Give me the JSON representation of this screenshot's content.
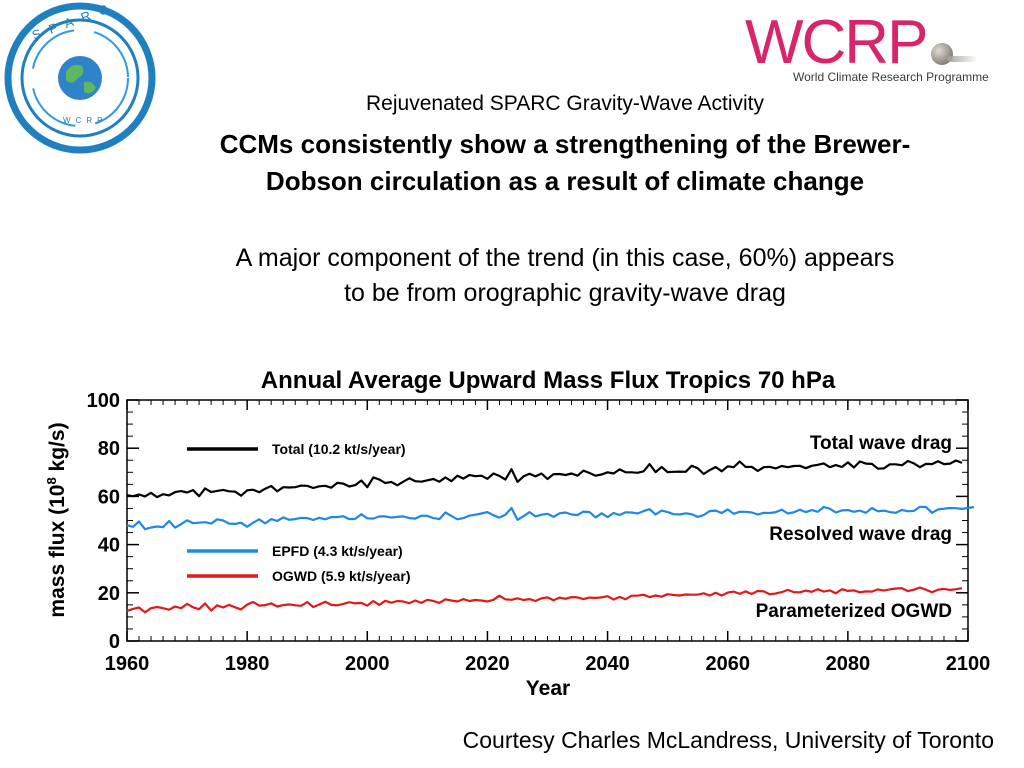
{
  "header": {
    "line1": "Rejuvenated SPARC Gravity-Wave Activity",
    "bold_line1": "CCMs consistently show a strengthening of the Brewer-",
    "bold_line2": "Dobson circulation as a result of climate change",
    "para_line1": "A major component of the trend (in this case, 60%) appears",
    "para_line2": "to be from orographic gravity-wave drag"
  },
  "logos": {
    "sparc_text": "SPARC",
    "sparc_sub": "WCRP",
    "wcrp_word": "WCRP",
    "wcrp_subtitle": "World Climate Research Programme"
  },
  "colors": {
    "wcrp_magenta": "#d8256a",
    "sparc_blue": "#1e7fc1",
    "total": "#000000",
    "epfd": "#1e88e5",
    "ogwd": "#e01a1a"
  },
  "chart_data": {
    "type": "line",
    "title": "Annual Average Upward Mass Flux Tropics 70 hPa",
    "xlabel": "Year",
    "ylabel_main": "mass flux (10",
    "ylabel_exp": "8",
    "ylabel_tail": " kg/s)",
    "xlim": [
      1960,
      2100
    ],
    "ylim": [
      0,
      100
    ],
    "xticks": [
      "1960",
      "1980",
      "2000",
      "2020",
      "2040",
      "2060",
      "2080",
      "2100"
    ],
    "yticks": [
      "0",
      "20",
      "40",
      "60",
      "80",
      "100"
    ],
    "legend_position": "upper-left",
    "x_start": 1960,
    "x_end": 2099,
    "series": [
      {
        "name": "Total (10.2 kt/s/year)",
        "color": "#000000",
        "annotation": "Total wave drag",
        "values": [
          60.5,
          60.1,
          60.8,
          60.0,
          61.5,
          59.7,
          60.9,
          60.4,
          61.8,
          62.2,
          61.6,
          62.6,
          60.1,
          63.3,
          61.8,
          62.3,
          62.7,
          62.1,
          62.0,
          60.3,
          62.5,
          62.8,
          61.7,
          63.2,
          64.3,
          62.1,
          63.8,
          63.7,
          63.8,
          64.5,
          64.4,
          63.5,
          64.2,
          64.4,
          63.6,
          65.6,
          65.3,
          64.1,
          64.7,
          66.6,
          63.8,
          67.9,
          67.0,
          65.5,
          66.0,
          64.6,
          66.1,
          67.5,
          66.3,
          66.1,
          66.7,
          67.2,
          66.1,
          67.9,
          66.3,
          68.6,
          67.4,
          68.9,
          68.4,
          68.6,
          67.3,
          69.5,
          68.5,
          67.0,
          71.3,
          66.0,
          68.3,
          69.4,
          68.3,
          69.5,
          67.2,
          69.2,
          69.3,
          68.9,
          69.5,
          68.6,
          70.7,
          69.7,
          68.6,
          69.1,
          70.0,
          69.5,
          71.2,
          70.0,
          70.0,
          69.8,
          70.4,
          73.4,
          70.1,
          72.2,
          70.1,
          70.2,
          70.3,
          70.2,
          72.7,
          71.7,
          69.3,
          70.9,
          72.2,
          70.4,
          72.5,
          72.1,
          74.5,
          72.2,
          72.3,
          70.6,
          72.1,
          72.3,
          71.6,
          72.6,
          72.1,
          72.6,
          72.7,
          71.7,
          72.7,
          73.1,
          73.7,
          72.1,
          73.0,
          72.2,
          74.1,
          72.0,
          74.5,
          73.6,
          73.5,
          71.5,
          71.6,
          73.3,
          73.3,
          72.9,
          74.7,
          73.7,
          72.1,
          73.5,
          73.4,
          74.6,
          73.4,
          73.6,
          74.9,
          73.9
        ]
      },
      {
        "name": "EPFD (4.3 kt/s/year)",
        "color": "#1e88e5",
        "annotation": "Resolved wave drag",
        "values": [
          48.0,
          47.4,
          49.6,
          46.4,
          47.1,
          47.5,
          47.2,
          49.8,
          47.0,
          48.5,
          50.1,
          48.9,
          49.1,
          49.3,
          48.7,
          50.5,
          50.0,
          48.7,
          48.6,
          49.1,
          47.4,
          49.1,
          50.5,
          48.8,
          50.6,
          49.8,
          51.3,
          50.3,
          50.6,
          51.1,
          51.0,
          50.2,
          51.1,
          50.5,
          51.4,
          51.4,
          51.8,
          50.6,
          50.7,
          52.6,
          50.9,
          50.8,
          51.7,
          51.7,
          51.2,
          51.5,
          51.7,
          51.0,
          50.8,
          52.0,
          51.9,
          51.0,
          50.6,
          53.3,
          51.9,
          50.5,
          51.0,
          52.0,
          52.4,
          52.9,
          53.5,
          52.2,
          51.2,
          52.4,
          55.2,
          50.3,
          51.8,
          53.5,
          51.7,
          52.4,
          52.8,
          51.5,
          53.0,
          53.3,
          52.5,
          52.3,
          53.7,
          53.5,
          51.3,
          53.0,
          51.4,
          53.1,
          52.3,
          53.4,
          53.3,
          52.9,
          53.9,
          54.7,
          52.5,
          54.1,
          53.5,
          52.6,
          52.5,
          53.0,
          52.6,
          51.5,
          52.3,
          53.9,
          54.1,
          53.1,
          54.6,
          52.8,
          53.6,
          53.6,
          53.3,
          52.5,
          53.2,
          53.1,
          53.5,
          54.5,
          52.9,
          53.4,
          54.5,
          53.5,
          54.3,
          53.6,
          55.6,
          54.9,
          53.3,
          54.2,
          54.3,
          53.6,
          54.1,
          53.2,
          55.2,
          53.8,
          54.1,
          53.5,
          53.2,
          54.4,
          53.8,
          54.0,
          55.7,
          55.6,
          53.2,
          54.6,
          54.9,
          55.2,
          55.1,
          54.8,
          55.2,
          55.6
        ]
      },
      {
        "name": "OGWD (5.9 kt/s/year)",
        "color": "#e01a1a",
        "annotation": "Parameterized OGWD",
        "values": [
          12.5,
          13.3,
          13.9,
          11.9,
          13.6,
          14.1,
          13.6,
          13.0,
          14.3,
          13.6,
          15.4,
          14.0,
          13.2,
          15.6,
          12.6,
          14.8,
          13.9,
          15.0,
          14.0,
          13.1,
          15.1,
          16.2,
          14.7,
          14.9,
          15.6,
          14.3,
          14.9,
          15.2,
          14.8,
          14.6,
          16.2,
          14.1,
          15.1,
          16.3,
          15.0,
          14.8,
          15.4,
          16.1,
          15.6,
          15.8,
          14.7,
          16.6,
          15.0,
          16.7,
          15.9,
          16.6,
          16.4,
          15.7,
          16.8,
          15.8,
          17.1,
          16.6,
          15.8,
          17.3,
          16.8,
          16.4,
          17.4,
          16.6,
          17.0,
          16.8,
          16.4,
          17.1,
          18.8,
          17.3,
          17.1,
          17.7,
          17.0,
          17.4,
          16.6,
          17.7,
          18.1,
          16.9,
          18.0,
          17.5,
          18.2,
          18.1,
          17.4,
          18.0,
          17.9,
          18.1,
          18.6,
          17.2,
          18.3,
          17.3,
          18.8,
          18.8,
          19.2,
          18.2,
          18.9,
          18.4,
          19.4,
          19.1,
          18.9,
          19.3,
          19.2,
          19.2,
          19.8,
          18.9,
          20.0,
          18.9,
          20.1,
          20.5,
          19.6,
          20.6,
          19.5,
          20.8,
          20.6,
          19.4,
          19.7,
          20.3,
          21.2,
          20.3,
          20.2,
          20.9,
          20.4,
          21.5,
          20.5,
          21.0,
          19.8,
          21.5,
          20.8,
          21.0,
          20.2,
          20.6,
          20.5,
          21.4,
          20.9,
          21.4,
          21.8,
          21.9,
          20.7,
          21.3,
          22.2,
          21.3,
          20.2,
          21.3,
          21.6,
          21.2,
          21.5,
          21.9
        ]
      }
    ]
  },
  "footer": {
    "credit": "Courtesy Charles McLandress, University of Toronto"
  }
}
